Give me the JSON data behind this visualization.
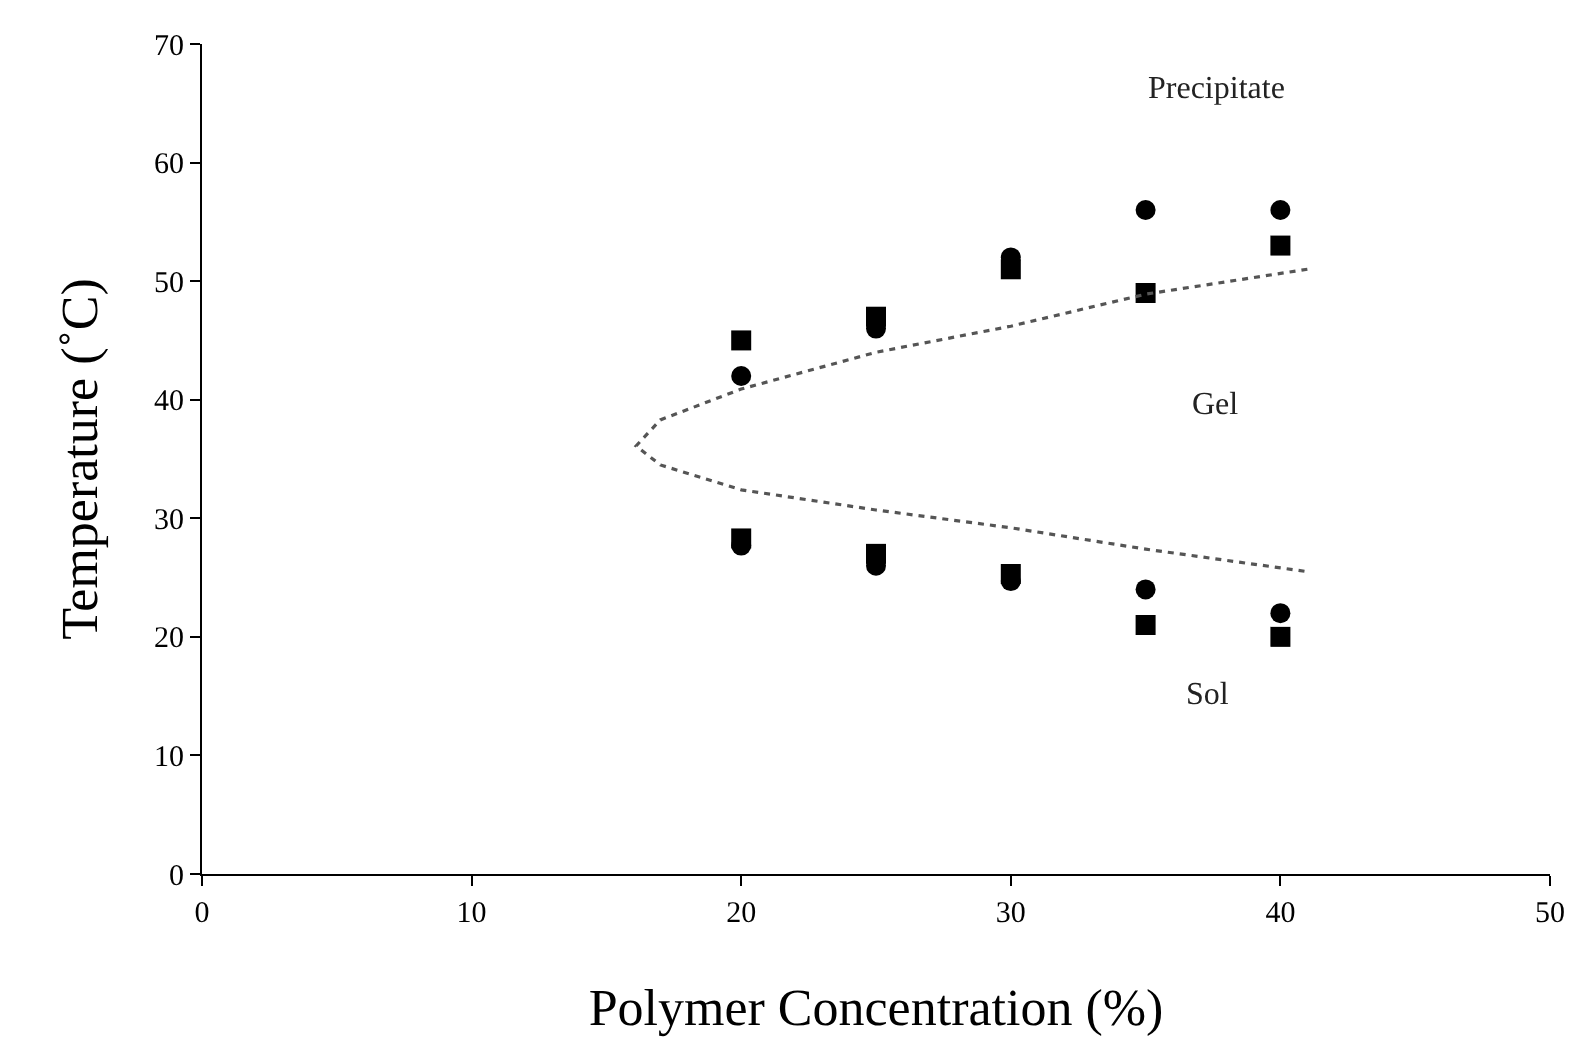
{
  "chart_data": {
    "type": "scatter",
    "xlabel": "Polymer Concentration (%)",
    "ylabel": "Temperature (˚C)",
    "xlim": [
      0,
      50
    ],
    "xticks": [
      0,
      10,
      20,
      30,
      40,
      50
    ],
    "ylim": [
      0,
      70
    ],
    "yticks": [
      0,
      10,
      20,
      30,
      40,
      50,
      60,
      70
    ],
    "grid": false,
    "series": [
      {
        "marker": "square",
        "color": "#000000",
        "x": [
          20,
          25,
          30,
          35,
          40,
          20,
          25,
          30,
          35,
          40
        ],
        "values": [
          45,
          47,
          51,
          49,
          53,
          28.3,
          27,
          25.3,
          21,
          20
        ]
      },
      {
        "marker": "circle",
        "color": "#000000",
        "x": [
          20,
          25,
          30,
          35,
          40,
          20,
          25,
          30,
          35,
          40
        ],
        "values": [
          42,
          46,
          52,
          56,
          56,
          27.7,
          26,
          24.7,
          24,
          22
        ]
      },
      {
        "type": "line",
        "marker": "none",
        "line_style": "dotted",
        "color": "#555555",
        "x": [
          41,
          35,
          30,
          25,
          20,
          17,
          16.1,
          17,
          20,
          25,
          30,
          35,
          41
        ],
        "values": [
          51,
          48.9,
          46.2,
          44,
          40.9,
          38.3,
          36.1,
          34.5,
          32.4,
          30.7,
          29.2,
          27.4,
          25.5
        ]
      }
    ],
    "annotations": [
      "Precipitate",
      "Gel",
      "Sol"
    ]
  }
}
